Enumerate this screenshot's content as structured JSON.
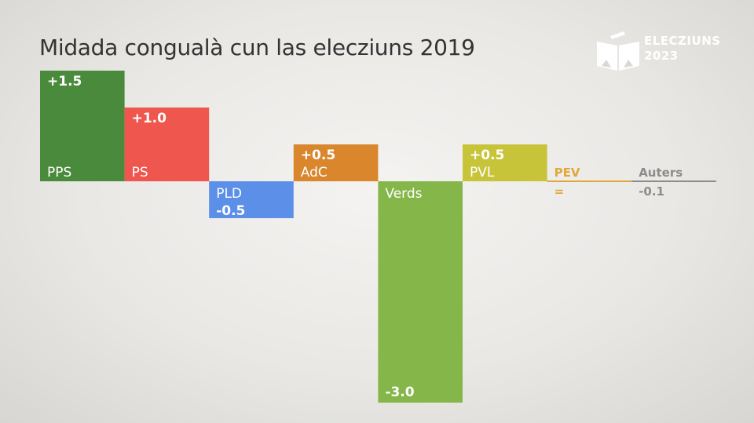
{
  "title": "Midada congualà cun las elecziuns 2019",
  "logo": {
    "line1": "ELECZIUNS",
    "line2": "2023"
  },
  "chart_data": {
    "type": "bar",
    "title": "Midada congualà cun las elecziuns 2019",
    "categories": [
      "PPS",
      "PS",
      "PLD",
      "AdC",
      "Verds",
      "PVL",
      "PEV",
      "Auters"
    ],
    "values": [
      1.5,
      1.0,
      -0.5,
      0.5,
      -3.0,
      0.5,
      0.0,
      -0.1
    ],
    "value_labels": [
      "+1.5",
      "+1.0",
      "-0.5",
      "+0.5",
      "-3.0",
      "+0.5",
      "=",
      "-0.1"
    ],
    "colors": [
      "#4a8a3c",
      "#ef564e",
      "#5b8fe8",
      "#d9862c",
      "#85b649",
      "#c8c43a",
      "#e0a83a",
      "#8c8c8c"
    ],
    "ylim": [
      -3.0,
      1.5
    ],
    "grid": false,
    "legend": "none"
  }
}
